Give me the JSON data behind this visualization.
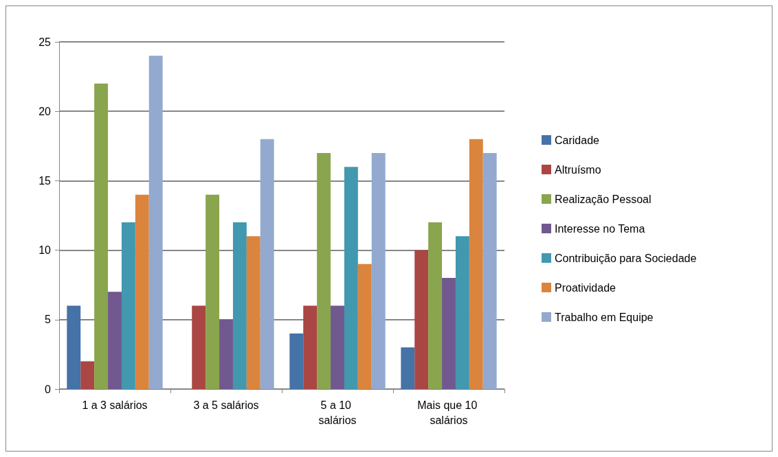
{
  "chart_data": {
    "type": "bar",
    "categories": [
      "1 a 3 salários",
      "3 a 5 salários",
      "5 a 10 salários",
      "Mais que 10 salários"
    ],
    "series": [
      {
        "name": "Caridade",
        "color": "#4572a7",
        "values": [
          6,
          0,
          4,
          3
        ]
      },
      {
        "name": "Altruísmo",
        "color": "#aa4643",
        "values": [
          2,
          6,
          6,
          10
        ]
      },
      {
        "name": "Realização Pessoal",
        "color": "#89a54e",
        "values": [
          22,
          14,
          17,
          12
        ]
      },
      {
        "name": "Interesse no Tema",
        "color": "#71588f",
        "values": [
          7,
          5,
          6,
          8
        ]
      },
      {
        "name": "Contribuição para Sociedade",
        "color": "#4198af",
        "values": [
          12,
          12,
          16,
          11
        ]
      },
      {
        "name": "Proatividade",
        "color": "#db843d",
        "values": [
          14,
          11,
          9,
          18
        ]
      },
      {
        "name": "Trabalho em Equipe",
        "color": "#93a9cf",
        "values": [
          24,
          18,
          17,
          17
        ]
      }
    ],
    "ylim": [
      0,
      25
    ],
    "yticks": [
      0,
      5,
      10,
      15,
      20,
      25
    ],
    "grid": "y",
    "legend": "right"
  }
}
